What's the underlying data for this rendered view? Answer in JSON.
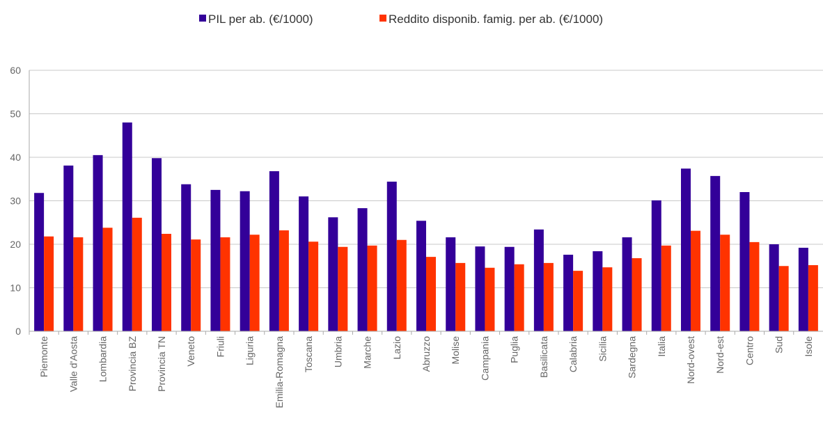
{
  "chart_data": {
    "type": "bar",
    "categories": [
      "Piemonte",
      "Valle d'Aosta",
      "Lombardia",
      "Provincia BZ",
      "Provincia TN",
      "Veneto",
      "Friuli",
      "Liguria",
      "Emilia-Romagna",
      "Toscana",
      "Umbria",
      "Marche",
      "Lazio",
      "Abruzzo",
      "Molise",
      "Campania",
      "Puglia",
      "Basilicata",
      "Calabria",
      "Sicilia",
      "Sardegna",
      "Italia",
      "Nord-ovest",
      "Nord-est",
      "Centro",
      "Sud",
      "Isole"
    ],
    "series": [
      {
        "name": "PIL per ab. (€/1000)",
        "color": "#330099",
        "values": [
          31.8,
          38.1,
          40.5,
          48,
          39.8,
          33.8,
          32.5,
          32.2,
          36.8,
          31,
          26.2,
          28.3,
          34.4,
          25.4,
          21.6,
          19.5,
          19.4,
          23.4,
          17.6,
          18.4,
          21.6,
          30.1,
          37.4,
          35.7,
          32,
          20,
          19.2
        ]
      },
      {
        "name": "Reddito disponib.  famig. per ab. (€/1000)",
        "color": "#ff3300",
        "values": [
          21.8,
          21.6,
          23.8,
          26.1,
          22.4,
          21.1,
          21.6,
          22.2,
          23.2,
          20.6,
          19.4,
          19.7,
          21,
          17.1,
          15.7,
          14.6,
          15.4,
          15.7,
          13.9,
          14.7,
          16.8,
          19.7,
          23.1,
          22.2,
          20.5,
          15,
          15.2
        ]
      }
    ],
    "ylim": [
      0,
      60
    ],
    "yticks": [
      0,
      10,
      20,
      30,
      40,
      50,
      60
    ],
    "grid": true,
    "legend": "top"
  }
}
